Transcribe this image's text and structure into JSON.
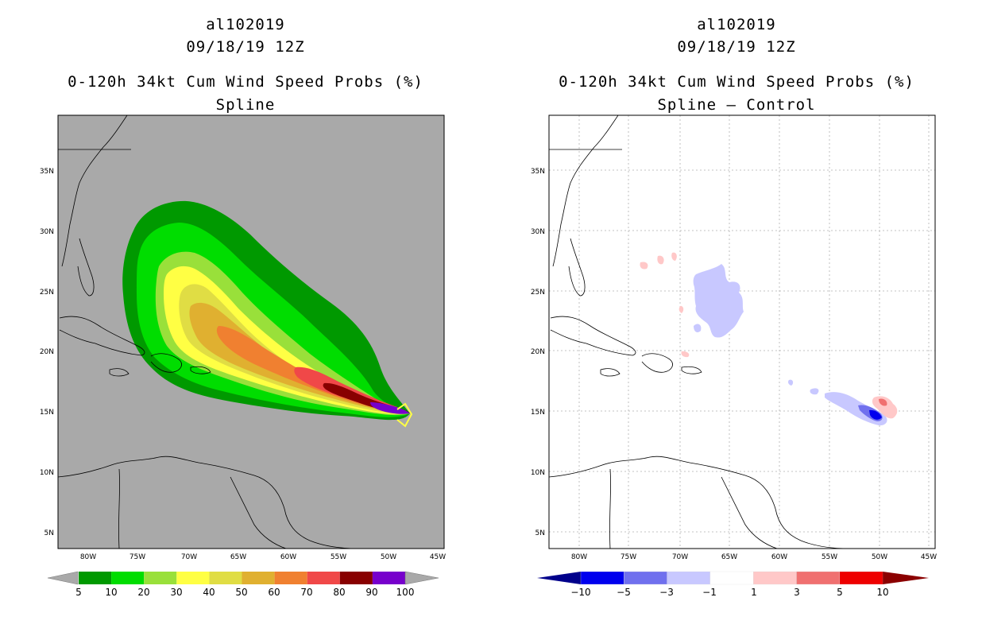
{
  "left_panel": {
    "title_line1": "al102019",
    "title_line2": "09/18/19 12Z",
    "title_line3": "0-120h 34kt Cum Wind Speed Probs (%)",
    "title_line4": "Spline",
    "background_color": "#a9a9a9",
    "colorbar": {
      "labels": [
        "5",
        "10",
        "20",
        "30",
        "40",
        "50",
        "60",
        "70",
        "80",
        "90",
        "100"
      ],
      "colors": [
        "#009900",
        "#00dd00",
        "#99e03a",
        "#ffff44",
        "#e0dd44",
        "#e0b030",
        "#f08030",
        "#f04848",
        "#880000",
        "#7700cc"
      ],
      "underflow_color": "#a9a9a9",
      "overflow_color": "#a9a9a9"
    }
  },
  "right_panel": {
    "title_line1": "al102019",
    "title_line2": "09/18/19 12Z",
    "title_line3": "0-120h 34kt Cum Wind Speed Probs (%)",
    "title_line4": "Spline – Control",
    "background_color": "#ffffff",
    "colorbar": {
      "labels": [
        "−10",
        "−5",
        "−3",
        "−1",
        "1",
        "3",
        "5",
        "10"
      ],
      "colors": [
        "#00008b",
        "#0000ee",
        "#7070ee",
        "#c8c8ff",
        "#ffffff",
        "#ffc8c8",
        "#f07070",
        "#ee0000",
        "#8b0000"
      ]
    }
  },
  "axes": {
    "lon_labels": [
      "80W",
      "75W",
      "70W",
      "65W",
      "60W",
      "55W",
      "50W",
      "45W"
    ],
    "lat_labels": [
      "35N",
      "30N",
      "25N",
      "20N",
      "15N",
      "10N",
      "5N"
    ]
  }
}
